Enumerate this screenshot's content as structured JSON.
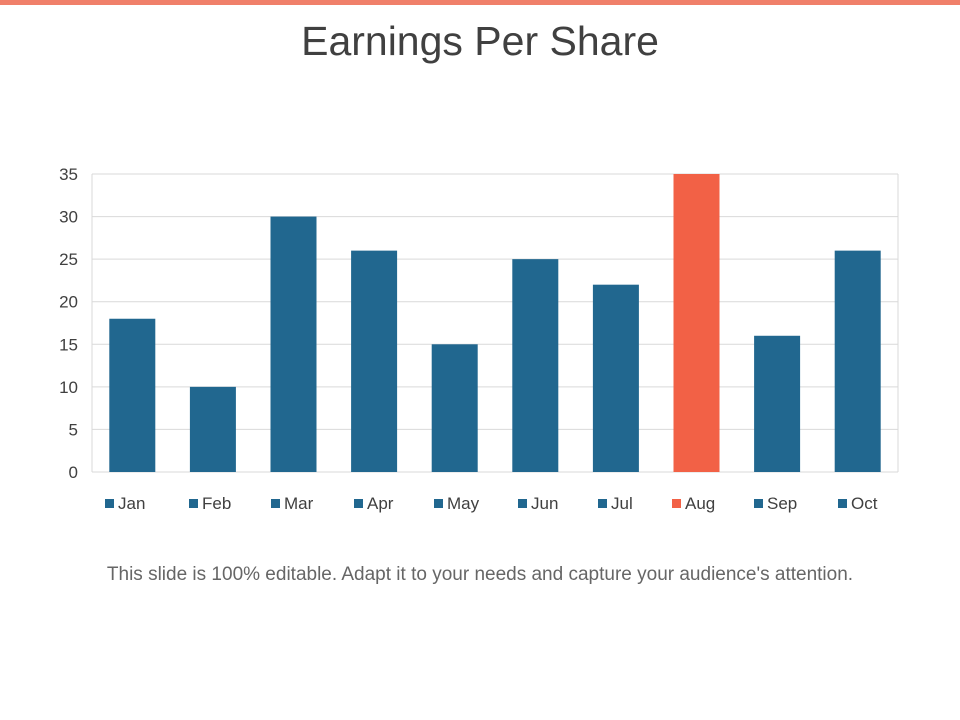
{
  "slide": {
    "title": "Earnings Per Share",
    "caption": "This slide is 100% editable. Adapt it to your needs and capture your audience's attention.",
    "accent_bar_color": "#f0806a"
  },
  "chart_data": {
    "type": "bar",
    "categories": [
      "Jan",
      "Feb",
      "Mar",
      "Apr",
      "May",
      "Jun",
      "Jul",
      "Aug",
      "Sep",
      "Oct"
    ],
    "values": [
      18,
      10,
      30,
      26,
      15,
      25,
      22,
      35,
      16,
      26
    ],
    "colors": [
      "#21678f",
      "#21678f",
      "#21678f",
      "#21678f",
      "#21678f",
      "#21678f",
      "#21678f",
      "#f26146",
      "#21678f",
      "#21678f"
    ],
    "ylim": [
      0,
      35
    ],
    "yticks": [
      "0",
      "5",
      "10",
      "15",
      "20",
      "25",
      "30",
      "35"
    ],
    "grid": true,
    "legend": "bottom"
  }
}
